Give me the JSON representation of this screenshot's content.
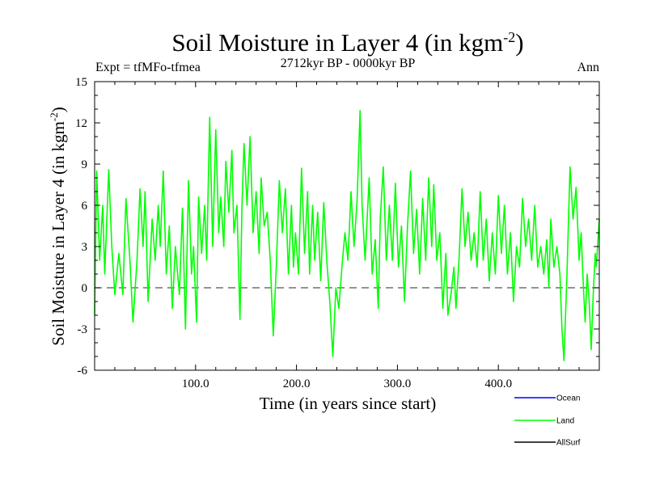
{
  "chart_data": {
    "type": "line",
    "title": "Soil Moisture in Layer 4 (in kgm",
    "title_sup": "-2",
    "title_end": ")",
    "left_note": "Expt = tfMFo-tfmea",
    "center_note": "2712kyr BP - 0000kyr BP",
    "right_note": "Ann",
    "xlabel": "Time (in years since start)",
    "ylabel": "Soil Moisture in Layer 4 (in kgm",
    "ylabel_sup": "-2",
    "ylabel_end": ")",
    "xlim": [
      0,
      500
    ],
    "ylim": [
      -6,
      15
    ],
    "x_ticks": [
      100,
      200,
      300,
      400
    ],
    "x_tick_labels": [
      "100.0",
      "200.0",
      "300.0",
      "400.0"
    ],
    "y_ticks": [
      -6,
      -3,
      0,
      3,
      6,
      9,
      12,
      15
    ],
    "y_tick_labels": [
      "-6",
      "-3",
      "0",
      "3",
      "6",
      "9",
      "12",
      "15"
    ],
    "zero_line": {
      "value": 0,
      "style": "dashed",
      "color": "#555555"
    },
    "legend": [
      {
        "name": "Ocean",
        "color": "#0000ff"
      },
      {
        "name": "Land",
        "color": "#00ff00"
      },
      {
        "name": "AllSurf",
        "color": "#000000"
      }
    ],
    "series": [
      {
        "name": "Land",
        "color": "#00ff00",
        "keypoints": [
          [
            0,
            -2
          ],
          [
            2,
            8.5
          ],
          [
            5,
            2
          ],
          [
            8,
            6
          ],
          [
            10,
            1
          ],
          [
            14,
            8.6
          ],
          [
            17,
            3
          ],
          [
            20,
            -0.5
          ],
          [
            24,
            2.5
          ],
          [
            28,
            -0.5
          ],
          [
            31,
            6.5
          ],
          [
            35,
            2
          ],
          [
            38,
            -2.5
          ],
          [
            42,
            2
          ],
          [
            45,
            7.2
          ],
          [
            48,
            3
          ],
          [
            50,
            7
          ],
          [
            53,
            -1
          ],
          [
            57,
            5
          ],
          [
            60,
            2
          ],
          [
            63,
            6
          ],
          [
            65,
            3
          ],
          [
            68,
            8.5
          ],
          [
            71,
            1
          ],
          [
            74,
            4.5
          ],
          [
            77,
            -1.5
          ],
          [
            80,
            3
          ],
          [
            84,
            -0.5
          ],
          [
            87,
            5.8
          ],
          [
            90,
            -3
          ],
          [
            93,
            7.8
          ],
          [
            96,
            1
          ],
          [
            98,
            3
          ],
          [
            101,
            -2.5
          ],
          [
            103,
            6.6
          ],
          [
            106,
            2.5
          ],
          [
            109,
            6
          ],
          [
            111,
            2
          ],
          [
            114,
            12.4
          ],
          [
            117,
            3
          ],
          [
            120,
            11.5
          ],
          [
            123,
            4
          ],
          [
            125,
            6.6
          ],
          [
            128,
            3
          ],
          [
            130,
            9.2
          ],
          [
            133,
            5.5
          ],
          [
            136,
            10
          ],
          [
            138,
            4
          ],
          [
            141,
            6
          ],
          [
            144,
            -2.3
          ],
          [
            146,
            6
          ],
          [
            148,
            10.5
          ],
          [
            151,
            6
          ],
          [
            154,
            11
          ],
          [
            157,
            4
          ],
          [
            160,
            7
          ],
          [
            163,
            2.5
          ],
          [
            165,
            8
          ],
          [
            168,
            4.5
          ],
          [
            171,
            5.5
          ],
          [
            174,
            2
          ],
          [
            177,
            -3.5
          ],
          [
            180,
            1.5
          ],
          [
            183,
            7.8
          ],
          [
            186,
            4
          ],
          [
            189,
            7.2
          ],
          [
            192,
            1
          ],
          [
            195,
            6
          ],
          [
            197,
            1.5
          ],
          [
            199,
            4
          ],
          [
            202,
            1
          ],
          [
            205,
            8.7
          ],
          [
            208,
            2.5
          ],
          [
            211,
            7
          ],
          [
            213,
            1
          ],
          [
            216,
            6
          ],
          [
            218,
            2
          ],
          [
            221,
            5.5
          ],
          [
            224,
            0.5
          ],
          [
            227,
            6.2
          ],
          [
            230,
            2
          ],
          [
            233,
            -1
          ],
          [
            236,
            -5
          ],
          [
            239,
            0
          ],
          [
            242,
            -1.5
          ],
          [
            245,
            1.5
          ],
          [
            248,
            4
          ],
          [
            251,
            2
          ],
          [
            254,
            7
          ],
          [
            257,
            3
          ],
          [
            260,
            6.3
          ],
          [
            263,
            12.9
          ],
          [
            265,
            6
          ],
          [
            268,
            2
          ],
          [
            270,
            5
          ],
          [
            272,
            8
          ],
          [
            275,
            1
          ],
          [
            278,
            3.5
          ],
          [
            281,
            -1.5
          ],
          [
            283,
            5
          ],
          [
            286,
            8.8
          ],
          [
            289,
            2
          ],
          [
            292,
            6
          ],
          [
            295,
            2
          ],
          [
            298,
            7.6
          ],
          [
            301,
            1.5
          ],
          [
            304,
            4.5
          ],
          [
            307,
            -1
          ],
          [
            310,
            4.5
          ],
          [
            313,
            8.5
          ],
          [
            316,
            2.5
          ],
          [
            319,
            5.7
          ],
          [
            322,
            1
          ],
          [
            325,
            6.5
          ],
          [
            328,
            2
          ],
          [
            331,
            8
          ],
          [
            334,
            3
          ],
          [
            336,
            7.5
          ],
          [
            339,
            2
          ],
          [
            342,
            4
          ],
          [
            345,
            -1.5
          ],
          [
            348,
            2.5
          ],
          [
            350,
            -2
          ],
          [
            353,
            -0.5
          ],
          [
            356,
            1.5
          ],
          [
            358,
            -1.5
          ],
          [
            361,
            2
          ],
          [
            364,
            7.2
          ],
          [
            367,
            3
          ],
          [
            370,
            5.5
          ],
          [
            373,
            2
          ],
          [
            376,
            4
          ],
          [
            379,
            1.5
          ],
          [
            382,
            7
          ],
          [
            385,
            2
          ],
          [
            388,
            5
          ],
          [
            391,
            0.5
          ],
          [
            394,
            4
          ],
          [
            397,
            1
          ],
          [
            400,
            6.7
          ],
          [
            403,
            2.5
          ],
          [
            406,
            6
          ],
          [
            409,
            1
          ],
          [
            412,
            4
          ],
          [
            415,
            -1
          ],
          [
            418,
            3
          ],
          [
            421,
            1.5
          ],
          [
            424,
            6.5
          ],
          [
            427,
            3
          ],
          [
            430,
            5
          ],
          [
            433,
            2
          ],
          [
            436,
            6
          ],
          [
            439,
            1.5
          ],
          [
            442,
            3
          ],
          [
            445,
            1
          ],
          [
            448,
            3.5
          ],
          [
            450,
            0
          ],
          [
            452,
            5
          ],
          [
            455,
            1.5
          ],
          [
            458,
            3
          ],
          [
            461,
            1
          ],
          [
            463,
            -3
          ],
          [
            465,
            -5.3
          ],
          [
            468,
            1
          ],
          [
            471,
            8.8
          ],
          [
            474,
            5
          ],
          [
            477,
            7.3
          ],
          [
            480,
            2
          ],
          [
            482,
            4
          ],
          [
            484,
            0.5
          ],
          [
            486,
            -2.5
          ],
          [
            488,
            1
          ],
          [
            490,
            -1
          ],
          [
            492,
            -4.5
          ],
          [
            494,
            -0.5
          ],
          [
            496,
            2.5
          ],
          [
            497,
            1.5
          ],
          [
            500,
            5
          ]
        ]
      }
    ]
  }
}
